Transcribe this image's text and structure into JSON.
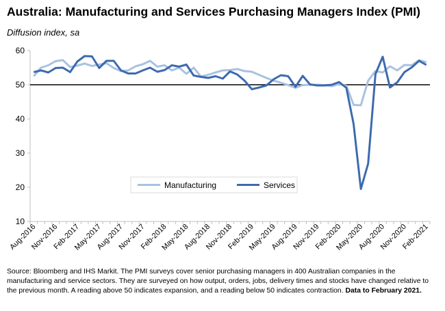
{
  "header": {
    "title": "Australia:  Manufacturing and Services Purchasing Managers Index (PMI)",
    "subtitle": "Diffusion index, sa"
  },
  "footer": {
    "source_text": "Source: Bloomberg and IHS Markit.  The PMI surveys cover senior purchasing managers in 400 Australian companies in the manufacturing and service sectors.  They are surveyed on how output, orders, jobs, delivery times and stocks have changed relative to the previous month.  A reading above 50 indicates expansion, and a reading below 50 indicates contraction.",
    "source_bold": "Data to February 2021."
  },
  "colors": {
    "manufacturing": "#a8c2e0",
    "services": "#3d6aaf",
    "reference_line": "#000000",
    "axis": "#bfbfbf"
  },
  "chart_data": {
    "type": "line",
    "title": "Australia:  Manufacturing and Services Purchasing Managers Index (PMI)",
    "ylabel": "Diffusion index, sa",
    "ylim": [
      10,
      60
    ],
    "yticks": [
      10,
      20,
      30,
      40,
      50,
      60
    ],
    "grid": false,
    "reference_line": 50,
    "legend_position": "lower-middle",
    "x": [
      "Aug-2016",
      "Sep-2016",
      "Oct-2016",
      "Nov-2016",
      "Dec-2016",
      "Jan-2017",
      "Feb-2017",
      "Mar-2017",
      "Apr-2017",
      "May-2017",
      "Jun-2017",
      "Jul-2017",
      "Aug-2017",
      "Sep-2017",
      "Oct-2017",
      "Nov-2017",
      "Dec-2017",
      "Jan-2018",
      "Feb-2018",
      "Mar-2018",
      "Apr-2018",
      "May-2018",
      "Jun-2018",
      "Jul-2018",
      "Aug-2018",
      "Sep-2018",
      "Oct-2018",
      "Nov-2018",
      "Dec-2018",
      "Jan-2019",
      "Feb-2019",
      "Mar-2019",
      "Apr-2019",
      "May-2019",
      "Jun-2019",
      "Jul-2019",
      "Aug-2019",
      "Sep-2019",
      "Oct-2019",
      "Nov-2019",
      "Dec-2019",
      "Jan-2020",
      "Feb-2020",
      "Mar-2020",
      "Apr-2020",
      "May-2020",
      "Jun-2020",
      "Jul-2020",
      "Aug-2020",
      "Sep-2020",
      "Oct-2020",
      "Nov-2020",
      "Dec-2020",
      "Jan-2021",
      "Feb-2021"
    ],
    "x_tick_labels": [
      "Aug-2016",
      "Nov-2016",
      "Feb-2017",
      "May-2017",
      "Aug-2017",
      "Nov-2017",
      "Feb-2018",
      "May-2018",
      "Aug-2018",
      "Nov-2018",
      "Feb-2019",
      "May-2019",
      "Aug-2019",
      "Nov-2019",
      "Feb-2020",
      "May-2020",
      "Aug-2020",
      "Nov-2020",
      "Feb-2021"
    ],
    "series": [
      {
        "name": "Manufacturing",
        "values": [
          52.5,
          55.0,
          55.7,
          56.9,
          57.2,
          55.2,
          55.6,
          56.2,
          55.5,
          55.9,
          56.3,
          54.9,
          54.0,
          54.2,
          55.4,
          56.0,
          57.0,
          55.3,
          55.7,
          54.2,
          55.0,
          53.2,
          55.0,
          52.4,
          52.9,
          53.6,
          54.2,
          54.3,
          54.6,
          54.0,
          53.8,
          52.9,
          52.0,
          51.2,
          50.6,
          49.9,
          49.1,
          49.9,
          50.0,
          50.0,
          49.9,
          49.6,
          50.2,
          49.7,
          44.1,
          44.0,
          51.2,
          54.0,
          53.6,
          55.4,
          54.2,
          55.8,
          55.7,
          57.2,
          56.6
        ]
      },
      {
        "name": "Services",
        "values": [
          53.7,
          54.2,
          53.6,
          54.9,
          55.0,
          53.7,
          56.8,
          58.4,
          58.3,
          54.9,
          57.0,
          57.0,
          54.2,
          53.3,
          53.3,
          54.2,
          55.0,
          53.8,
          54.3,
          55.7,
          55.3,
          55.9,
          52.7,
          52.3,
          52.0,
          52.5,
          51.8,
          53.9,
          53.0,
          51.2,
          48.7,
          49.2,
          49.8,
          51.6,
          52.8,
          52.5,
          49.4,
          52.6,
          50.1,
          49.8,
          49.8,
          50.0,
          50.8,
          49.1,
          38.5,
          19.5,
          26.9,
          53.1,
          58.2,
          49.2,
          50.7,
          53.7,
          55.1,
          57.0,
          55.8
        ]
      }
    ]
  }
}
